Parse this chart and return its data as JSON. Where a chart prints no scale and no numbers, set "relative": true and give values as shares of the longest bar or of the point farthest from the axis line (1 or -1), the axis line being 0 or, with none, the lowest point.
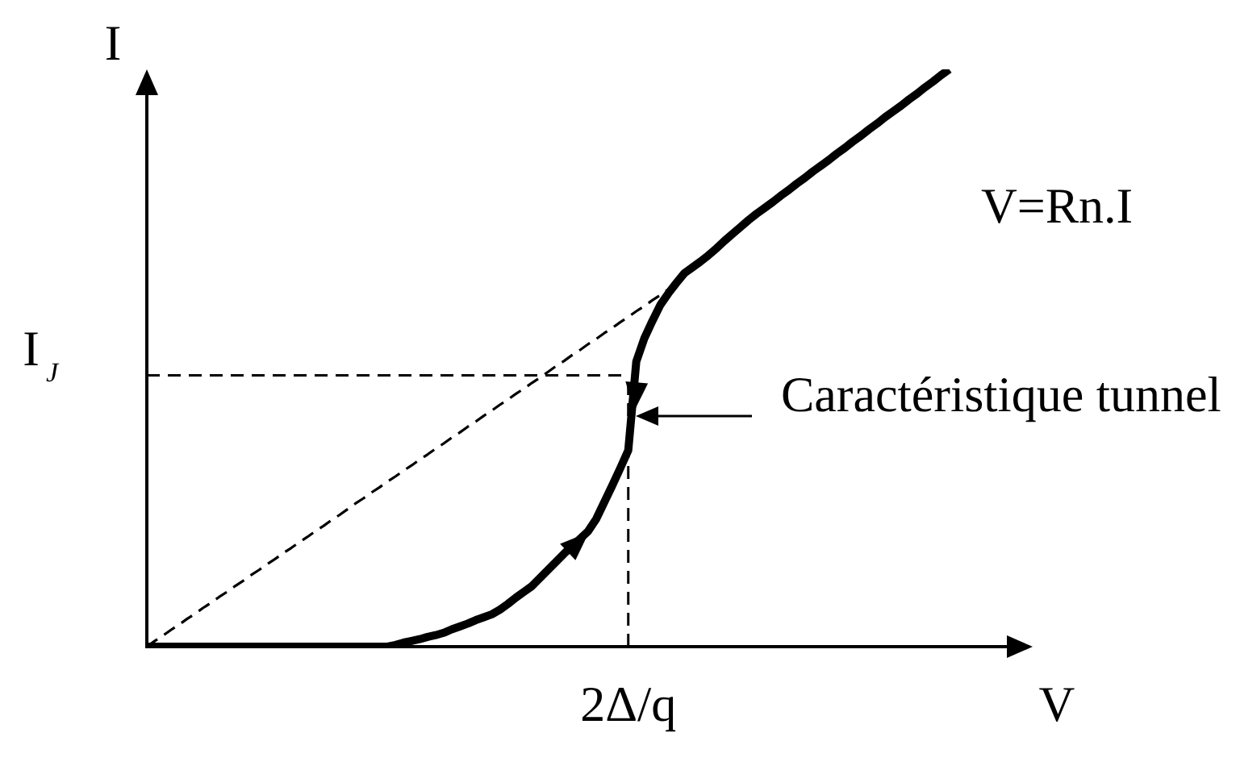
{
  "chart_data": {
    "type": "line",
    "relative": true,
    "xlabel": "V",
    "ylabel": "I",
    "marker": "none",
    "categories": [
      null,
      null,
      null,
      null,
      null,
      null,
      null,
      null,
      null,
      null,
      null,
      null,
      null,
      null,
      null,
      null,
      null,
      null,
      null,
      null,
      null,
      null,
      null,
      null,
      null,
      null,
      null,
      null,
      null,
      null,
      null,
      null,
      null,
      null,
      null,
      null,
      null,
      null,
      null,
      null,
      null,
      null,
      null,
      null,
      null,
      null,
      null,
      null,
      null,
      null,
      null,
      null,
      null,
      null,
      null,
      null,
      null,
      null,
      null,
      null,
      null,
      null,
      null,
      null,
      null,
      null,
      null,
      null,
      null,
      null,
      null,
      null,
      null,
      null,
      null,
      null,
      null,
      null,
      null,
      null,
      null,
      null,
      null,
      null,
      null,
      null,
      null,
      null,
      null,
      null,
      null,
      null,
      null,
      null,
      null,
      null,
      null,
      null,
      null,
      null,
      null,
      null,
      null,
      null,
      null,
      null,
      null,
      null,
      null,
      null,
      null
    ],
    "series": [
      {
        "color": "#000000",
        "values": [
          0,
          0,
          0,
          0,
          0,
          0,
          0,
          0,
          0,
          0,
          0,
          0,
          0,
          0,
          0,
          0,
          0,
          0,
          0,
          0,
          0,
          0,
          0,
          0,
          0,
          0,
          0,
          0,
          0,
          0,
          0,
          0.003,
          0.007,
          0.01,
          0.013,
          0.017,
          0.02,
          0.024,
          0.03,
          0.035,
          0.04,
          0.046,
          0.051,
          0.056,
          0.064,
          0.074,
          0.085,
          0.095,
          0.105,
          0.119,
          0.133,
          0.147,
          0.161,
          0.174,
          0.187,
          0.2,
          0.221,
          0.25,
          0.279,
          0.309,
          0.34,
          0.494,
          0.534,
          0.564,
          0.592,
          0.612,
          0.63,
          0.647,
          0.657,
          0.667,
          0.678,
          0.69,
          0.703,
          0.715,
          0.727,
          0.739,
          0.75,
          0.76,
          0.77,
          0.781,
          0.791,
          0.802,
          0.812,
          0.823,
          0.833,
          0.843,
          0.854,
          0.864,
          0.875,
          0.885,
          0.896,
          0.906,
          0.917,
          0.927,
          0.937,
          0.948,
          0.958,
          0.969,
          0.979,
          0.99,
          1,
          null,
          null,
          null,
          null,
          null,
          null,
          null,
          null,
          null,
          null
        ]
      },
      {
        "color": "#000000",
        "line_style": "dashed",
        "values": [
          0,
          0.01,
          0.019,
          0.029,
          0.038,
          0.048,
          0.057,
          0.067,
          0.076,
          0.086,
          0.095,
          0.105,
          0.114,
          0.124,
          0.133,
          0.143,
          0.152,
          0.162,
          0.171,
          0.181,
          0.19,
          0.2,
          0.209,
          0.219,
          0.228,
          0.238,
          0.248,
          0.257,
          0.267,
          0.276,
          0.286,
          0.295,
          0.305,
          0.314,
          0.324,
          0.333,
          0.343,
          0.352,
          0.362,
          0.371,
          0.381,
          0.39,
          0.4,
          0.409,
          0.419,
          0.428,
          0.438,
          0.447,
          0.457,
          0.466,
          0.476,
          0.486,
          0.495,
          0.505,
          0.514,
          0.524,
          0.533,
          0.543,
          0.552,
          0.562,
          0.571,
          0.581,
          0.59,
          0.6,
          0.609,
          0.619,
          null,
          null,
          null,
          null,
          null,
          null,
          null,
          null,
          null,
          null,
          null,
          null,
          null,
          null,
          null,
          null,
          null,
          null,
          null,
          null,
          null,
          null,
          null,
          null,
          null,
          null,
          null,
          null,
          null,
          null,
          null,
          null,
          null,
          null,
          null,
          null,
          null,
          null,
          null,
          null,
          null,
          null,
          null,
          null,
          null
        ]
      }
    ],
    "ref_lines": [
      {
        "axis": "y",
        "value": 0.47,
        "label": "I$_{J}$",
        "color": "#000000",
        "line_style": "dashed"
      }
    ],
    "annotations": [
      "V=Rn.I",
      "Caractéristique tunnel",
      "2Δ/q"
    ]
  }
}
